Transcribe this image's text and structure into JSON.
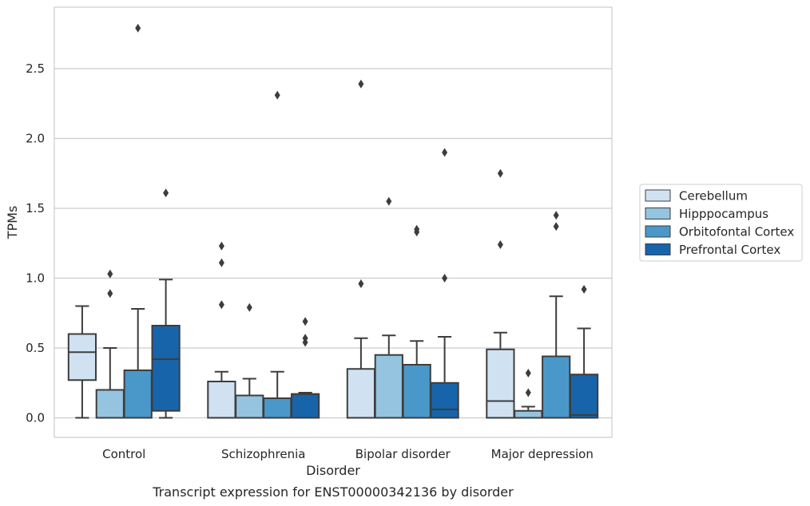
{
  "chart_data": {
    "type": "box",
    "title": "",
    "caption": "Transcript expression for ENST00000342136 by disorder",
    "xlabel": "Disorder",
    "ylabel": "TPMs",
    "ylim": [
      -0.14,
      2.94
    ],
    "yticks": [
      "0.0",
      "0.5",
      "1.0",
      "1.5",
      "2.0",
      "2.5"
    ],
    "categories": [
      "Control",
      "Schizophrenia",
      "Bipolar disorder",
      "Major depression"
    ],
    "grid": "horizontal",
    "legend_position": "right",
    "series": [
      {
        "name": "Cerebellum",
        "color": "#d0e1f2",
        "boxes": [
          {
            "min": 0.0,
            "q1": 0.27,
            "median": 0.47,
            "q3": 0.6,
            "max": 0.8,
            "outliers": []
          },
          {
            "min": 0.0,
            "q1": 0.0,
            "median": 0.0,
            "q3": 0.26,
            "max": 0.33,
            "outliers": [
              1.23,
              1.11,
              0.81
            ]
          },
          {
            "min": 0.0,
            "q1": 0.0,
            "median": 0.0,
            "q3": 0.35,
            "max": 0.57,
            "outliers": [
              2.39,
              0.96
            ]
          },
          {
            "min": 0.0,
            "q1": 0.0,
            "median": 0.12,
            "q3": 0.49,
            "max": 0.61,
            "outliers": [
              1.75,
              1.24
            ]
          }
        ]
      },
      {
        "name": "Hipppocampus",
        "color": "#94c4df",
        "boxes": [
          {
            "min": 0.0,
            "q1": 0.0,
            "median": 0.0,
            "q3": 0.2,
            "max": 0.5,
            "outliers": [
              1.03,
              0.89
            ]
          },
          {
            "min": 0.0,
            "q1": 0.0,
            "median": 0.0,
            "q3": 0.16,
            "max": 0.28,
            "outliers": [
              0.79
            ]
          },
          {
            "min": 0.0,
            "q1": 0.0,
            "median": 0.0,
            "q3": 0.45,
            "max": 0.59,
            "outliers": [
              1.55
            ]
          },
          {
            "min": 0.0,
            "q1": 0.0,
            "median": 0.0,
            "q3": 0.05,
            "max": 0.08,
            "outliers": [
              0.32,
              0.18
            ]
          }
        ]
      },
      {
        "name": "Orbitofontal Cortex",
        "color": "#4a98c9",
        "boxes": [
          {
            "min": 0.0,
            "q1": 0.0,
            "median": 0.0,
            "q3": 0.34,
            "max": 0.78,
            "outliers": [
              2.79
            ]
          },
          {
            "min": 0.0,
            "q1": 0.0,
            "median": 0.0,
            "q3": 0.14,
            "max": 0.33,
            "outliers": [
              2.31
            ]
          },
          {
            "min": 0.0,
            "q1": 0.0,
            "median": 0.0,
            "q3": 0.38,
            "max": 0.55,
            "outliers": [
              1.35,
              1.33
            ]
          },
          {
            "min": 0.0,
            "q1": 0.0,
            "median": 0.0,
            "q3": 0.44,
            "max": 0.87,
            "outliers": [
              1.45,
              1.37
            ]
          }
        ]
      },
      {
        "name": "Prefrontal Cortex",
        "color": "#1764ab",
        "boxes": [
          {
            "min": 0.0,
            "q1": 0.05,
            "median": 0.42,
            "q3": 0.66,
            "max": 0.99,
            "outliers": [
              1.61
            ]
          },
          {
            "min": 0.0,
            "q1": 0.0,
            "median": 0.17,
            "q3": 0.17,
            "max": 0.18,
            "outliers": [
              0.69,
              0.57,
              0.54
            ]
          },
          {
            "min": 0.0,
            "q1": 0.0,
            "median": 0.06,
            "q3": 0.25,
            "max": 0.58,
            "outliers": [
              1.9,
              1.0
            ]
          },
          {
            "min": 0.0,
            "q1": 0.0,
            "median": 0.02,
            "q3": 0.31,
            "max": 0.64,
            "outliers": [
              0.92
            ]
          }
        ]
      }
    ]
  }
}
